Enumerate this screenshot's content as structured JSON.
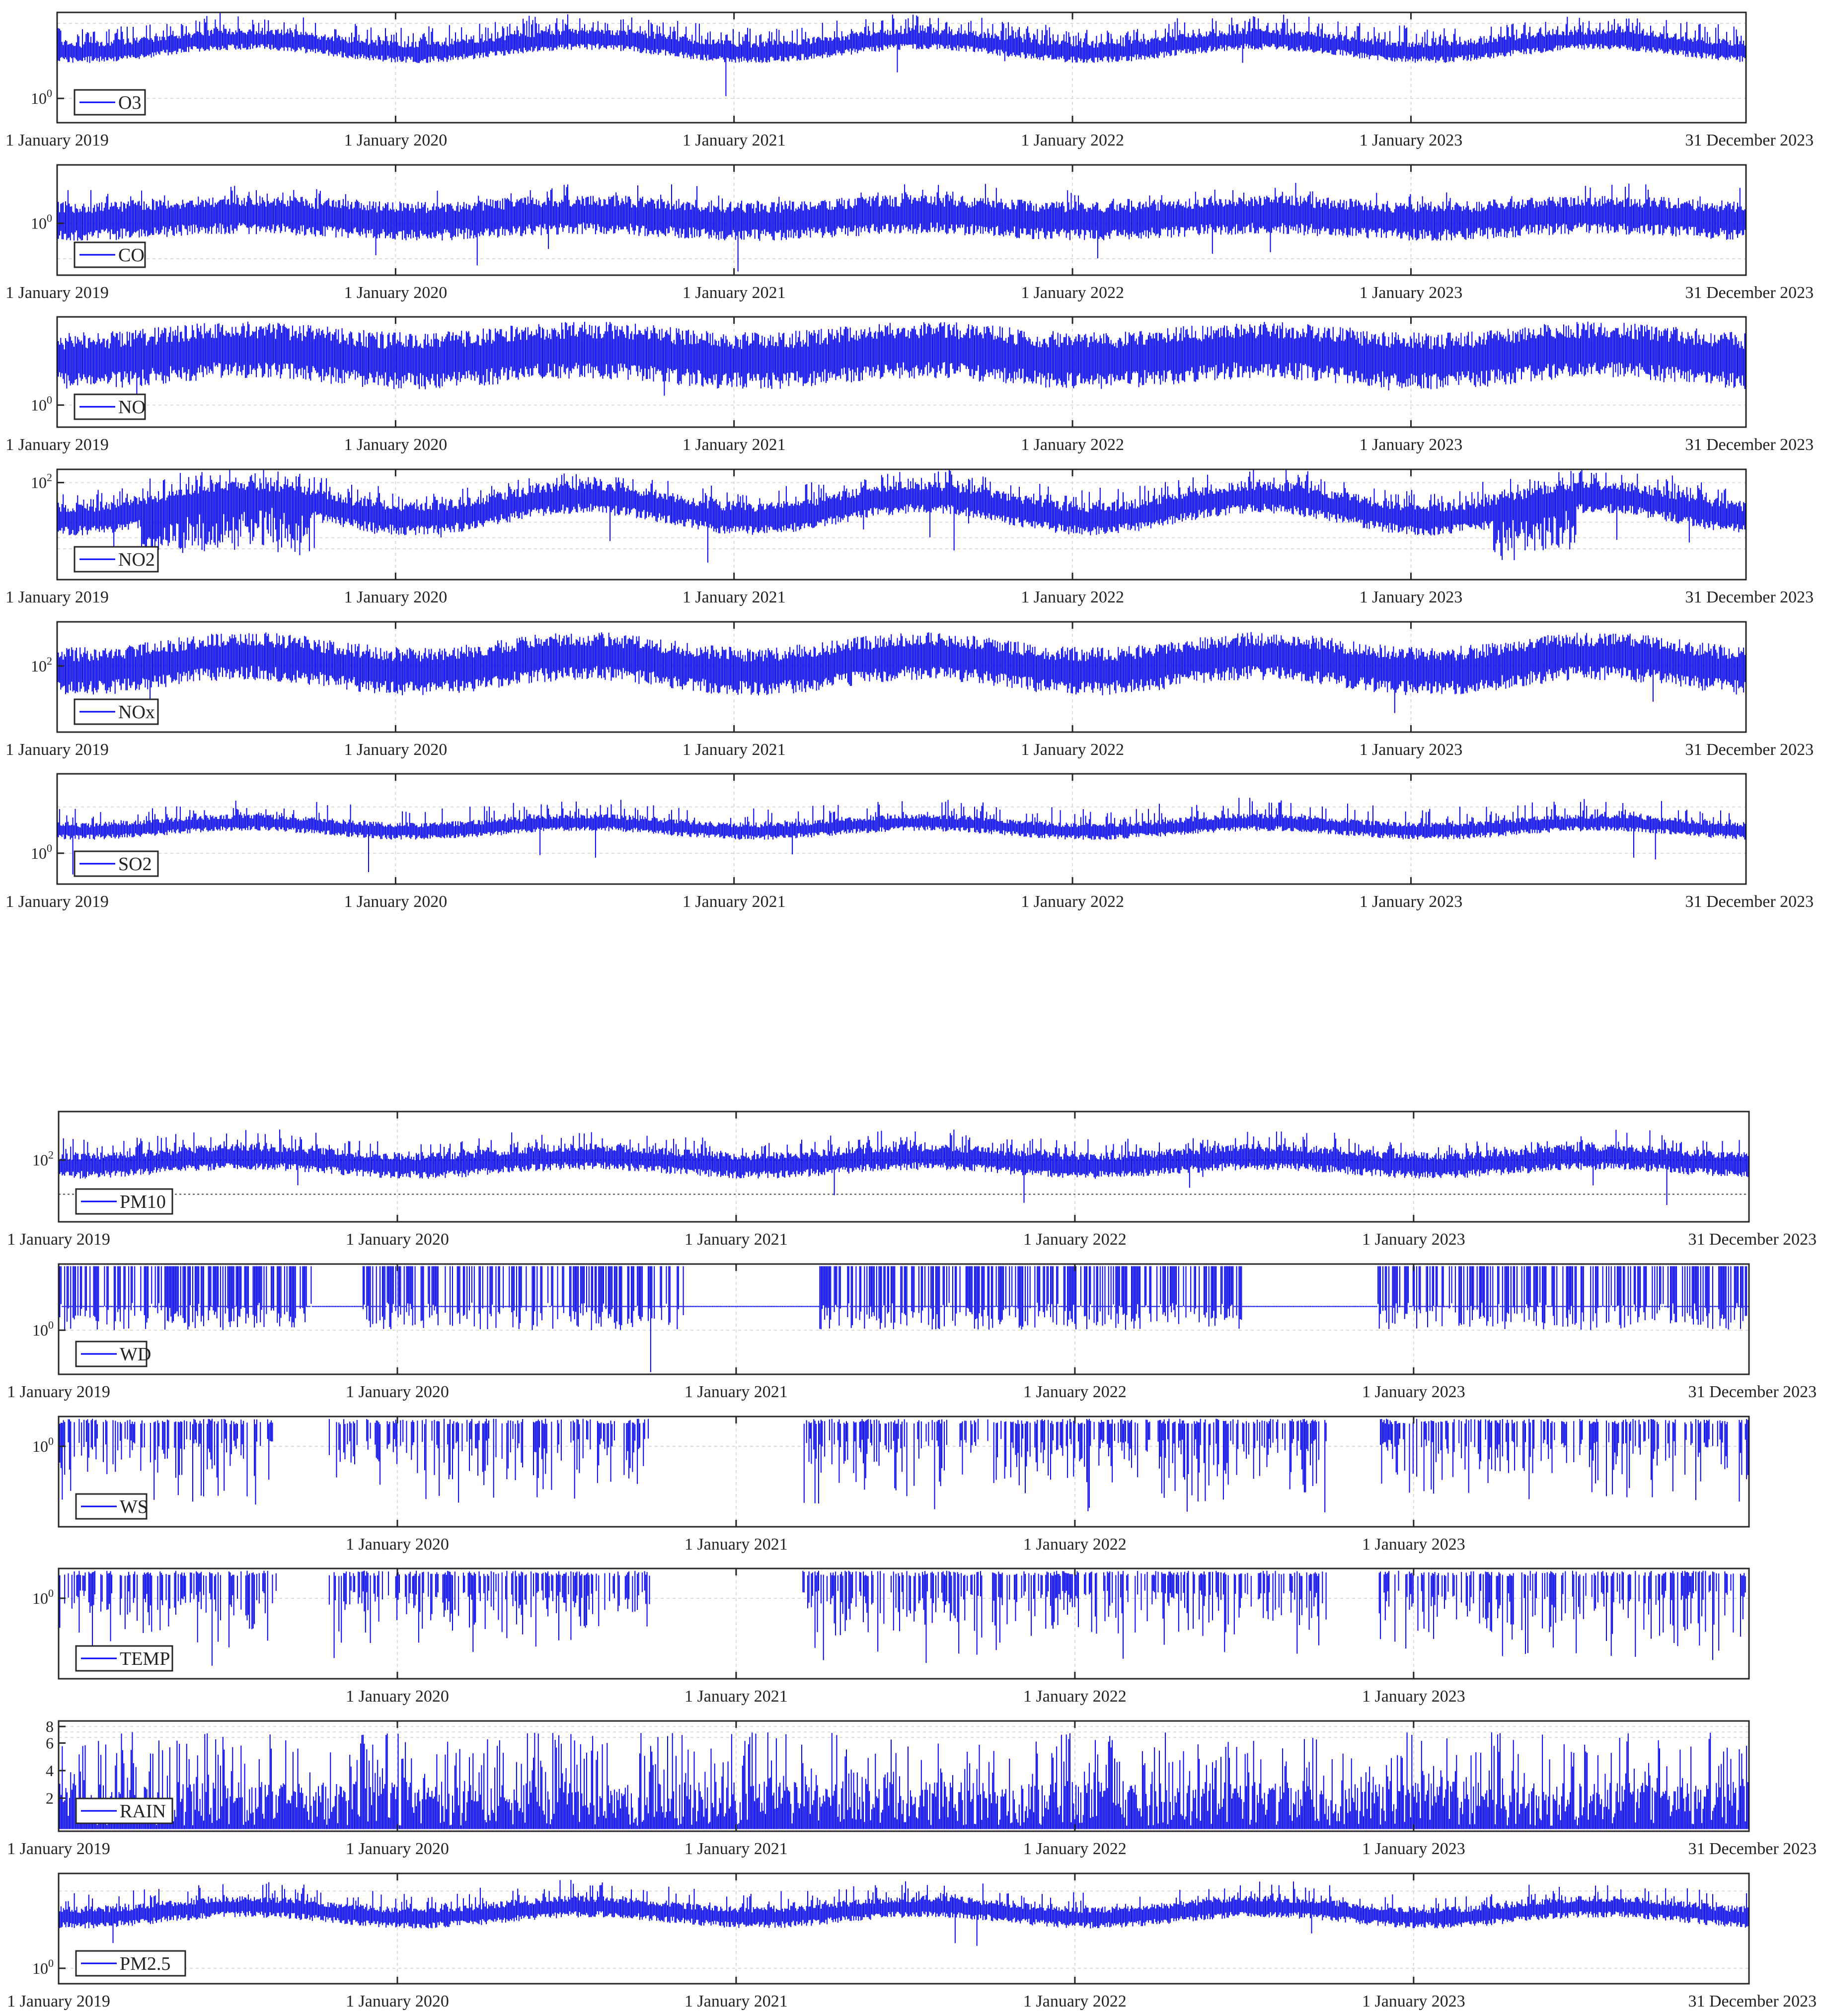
{
  "colors": {
    "series": "#0000ff",
    "axes": "#262626",
    "grid": "#d9d9d9",
    "ref_line": "#000000"
  },
  "chart_data": [
    {
      "type": "line",
      "legend": "O3",
      "y_scale": "log",
      "ytick_labels": [
        {
          "base": "10",
          "exp": "0"
        }
      ],
      "x_tick_labels": [
        "1 January 2019",
        "1 January 2020",
        "1 January 2021",
        "1 January 2022",
        "1 January 2023",
        "31 December 2023"
      ],
      "grid": "on",
      "legend_position": "bottom-left"
    },
    {
      "type": "line",
      "legend": "CO",
      "y_scale": "log",
      "ytick_labels": [
        {
          "base": "10",
          "exp": "0"
        }
      ],
      "x_tick_labels": [
        "1 January 2019",
        "1 January 2020",
        "1 January 2021",
        "1 January 2022",
        "1 January 2023",
        "31 December 2023"
      ],
      "grid": "on",
      "legend_position": "bottom-left"
    },
    {
      "type": "line",
      "legend": "NO",
      "y_scale": "log",
      "ytick_labels": [
        {
          "base": "10",
          "exp": "0"
        }
      ],
      "x_tick_labels": [
        "1 January 2019",
        "1 January 2020",
        "1 January 2021",
        "1 January 2022",
        "1 January 2023",
        "31 December 2023"
      ],
      "grid": "on",
      "legend_position": "bottom-left"
    },
    {
      "type": "line",
      "legend": "NO2",
      "y_scale": "log",
      "ytick_labels": [
        {
          "base": "10",
          "exp": "2"
        }
      ],
      "x_tick_labels": [
        "1 January 2019",
        "1 January 2020",
        "1 January 2021",
        "1 January 2022",
        "1 January 2023",
        "31 December 2023"
      ],
      "grid": "on",
      "legend_position": "bottom-left"
    },
    {
      "type": "line",
      "legend": "NOx",
      "y_scale": "log",
      "ytick_labels": [
        {
          "base": "10",
          "exp": "2"
        }
      ],
      "x_tick_labels": [
        "1 January 2019",
        "1 January 2020",
        "1 January 2021",
        "1 January 2022",
        "1 January 2023",
        "31 December 2023"
      ],
      "grid": "on",
      "legend_position": "bottom-left"
    },
    {
      "type": "line",
      "legend": "SO2",
      "y_scale": "log",
      "ytick_labels": [
        {
          "base": "10",
          "exp": "0"
        }
      ],
      "x_tick_labels": [
        "1 January 2019",
        "1 January 2020",
        "1 January 2021",
        "1 January 2022",
        "1 January 2023",
        "31 December 2023"
      ],
      "grid": "on",
      "legend_position": "bottom-left"
    },
    {
      "type": "line",
      "legend": "PM10",
      "y_scale": "log",
      "ytick_labels": [
        {
          "base": "10",
          "exp": "2"
        }
      ],
      "x_tick_labels": [
        "1 January 2019",
        "1 January 2020",
        "1 January 2021",
        "1 January 2022",
        "1 January 2023",
        "31 December 2023"
      ],
      "grid": "on",
      "legend_position": "bottom-left"
    },
    {
      "type": "line",
      "legend": "WD",
      "y_scale": "log",
      "ytick_labels": [
        {
          "base": "10",
          "exp": "0"
        }
      ],
      "x_tick_labels": [
        "1 January 2019",
        "1 January 2020",
        "1 January 2021",
        "1 January 2022",
        "1 January 2023",
        "31 December 2023"
      ],
      "grid": "on",
      "legend_position": "bottom-left"
    },
    {
      "type": "line",
      "legend": "WS",
      "y_scale": "log",
      "ytick_labels": [
        {
          "base": "10",
          "exp": "0"
        }
      ],
      "x_tick_labels": [
        "",
        "1 January 2020",
        "1 January 2021",
        "1 January 2022",
        "1 January 2023",
        ""
      ],
      "grid": "on",
      "legend_position": "bottom-left"
    },
    {
      "type": "line",
      "legend": "TEMP",
      "y_scale": "log",
      "ytick_labels": [
        {
          "base": "10",
          "exp": "0"
        }
      ],
      "x_tick_labels": [
        "",
        "1 January 2020",
        "1 January 2021",
        "1 January 2022",
        "1 January 2023",
        ""
      ],
      "grid": "on",
      "legend_position": "bottom-left"
    },
    {
      "type": "line",
      "legend": "RAIN",
      "y_scale": "linear",
      "ytick_labels": [
        {
          "base": "2",
          "exp": ""
        },
        {
          "base": "4",
          "exp": ""
        },
        {
          "base": "6",
          "exp": ""
        },
        {
          "base": "8",
          "exp": ""
        }
      ],
      "x_tick_labels": [
        "1 January 2019",
        "1 January 2020",
        "1 January 2021",
        "1 January 2022",
        "1 January 2023",
        "31 December 2023"
      ],
      "grid": "on",
      "legend_position": "bottom-left"
    },
    {
      "type": "line",
      "legend": "PM2.5",
      "y_scale": "log",
      "ytick_labels": [
        {
          "base": "10",
          "exp": "0"
        }
      ],
      "x_tick_labels": [
        "1 January 2019",
        "1 January 2020",
        "1 January 2021",
        "1 January 2022",
        "1 January 2023",
        "31 December 2023"
      ],
      "grid": "on",
      "legend_position": "bottom-left"
    }
  ]
}
